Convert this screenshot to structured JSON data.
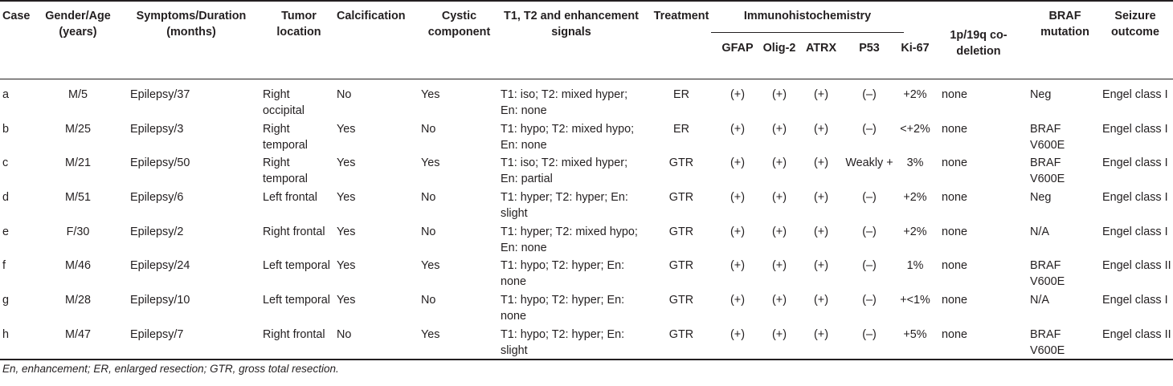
{
  "table": {
    "headers": {
      "case": "Case",
      "gender_age": "Gender/Age (years)",
      "symptoms": "Symptoms/Duration (months)",
      "location": "Tumor location",
      "calcification": "Calcification",
      "cystic": "Cystic component",
      "signals": "T1, T2 and enhancement signals",
      "treatment": "Treatment",
      "immuno": "Immunohistochemistry",
      "gfap": "GFAP",
      "olig2": "Olig-2",
      "atrx": "ATRX",
      "p53": "P53",
      "ki67": "Ki-67",
      "codeletion": "1p/19q co-deletion",
      "braf": "BRAF mutation",
      "seizure": "Seizure outcome"
    },
    "rows": [
      {
        "case": "a",
        "gender_age": "M/5",
        "symptoms": "Epilepsy/37",
        "location": "Right occipital",
        "calcification": "No",
        "cystic": "Yes",
        "signals": "T1: iso; T2: mixed hyper; En: none",
        "treatment": "ER",
        "gfap": "(+)",
        "olig2": "(+)",
        "atrx": "(+)",
        "p53": "(–)",
        "ki67": "+2%",
        "codeletion": "none",
        "braf": "Neg",
        "seizure": "Engel class I"
      },
      {
        "case": "b",
        "gender_age": "M/25",
        "symptoms": "Epilepsy/3",
        "location": "Right temporal",
        "calcification": "Yes",
        "cystic": "No",
        "signals": "T1: hypo; T2: mixed hypo; En: none",
        "treatment": "ER",
        "gfap": "(+)",
        "olig2": "(+)",
        "atrx": "(+)",
        "p53": "(–)",
        "ki67": "<+2%",
        "codeletion": "none",
        "braf": "BRAF V600E",
        "seizure": "Engel class I"
      },
      {
        "case": "c",
        "gender_age": "M/21",
        "symptoms": "Epilepsy/50",
        "location": "Right temporal",
        "calcification": "Yes",
        "cystic": "Yes",
        "signals": "T1: iso; T2: mixed hyper; En: partial",
        "treatment": "GTR",
        "gfap": "(+)",
        "olig2": "(+)",
        "atrx": "(+)",
        "p53": "Weakly +",
        "ki67": "3%",
        "codeletion": "none",
        "braf": "BRAF V600E",
        "seizure": "Engel class I"
      },
      {
        "case": "d",
        "gender_age": "M/51",
        "symptoms": "Epilepsy/6",
        "location": "Left frontal",
        "calcification": "Yes",
        "cystic": "No",
        "signals": "T1: hyper; T2: hyper; En: slight",
        "treatment": "GTR",
        "gfap": "(+)",
        "olig2": "(+)",
        "atrx": "(+)",
        "p53": "(–)",
        "ki67": "+2%",
        "codeletion": "none",
        "braf": "Neg",
        "seizure": "Engel class I"
      },
      {
        "case": "e",
        "gender_age": "F/30",
        "symptoms": "Epilepsy/2",
        "location": "Right frontal",
        "calcification": "Yes",
        "cystic": "No",
        "signals": "T1: hyper; T2: mixed hypo; En: none",
        "treatment": "GTR",
        "gfap": "(+)",
        "olig2": "(+)",
        "atrx": "(+)",
        "p53": "(–)",
        "ki67": "+2%",
        "codeletion": "none",
        "braf": "N/A",
        "seizure": "Engel class I"
      },
      {
        "case": "f",
        "gender_age": "M/46",
        "symptoms": "Epilepsy/24",
        "location": "Left temporal",
        "calcification": "Yes",
        "cystic": "Yes",
        "signals": "T1: hypo; T2: hyper; En: none",
        "treatment": "GTR",
        "gfap": "(+)",
        "olig2": "(+)",
        "atrx": "(+)",
        "p53": "(–)",
        "ki67": "1%",
        "codeletion": "none",
        "braf": "BRAF V600E",
        "seizure": "Engel class II"
      },
      {
        "case": "g",
        "gender_age": "M/28",
        "symptoms": "Epilepsy/10",
        "location": "Left temporal",
        "calcification": "Yes",
        "cystic": "No",
        "signals": "T1: hypo; T2: hyper; En: none",
        "treatment": "GTR",
        "gfap": "(+)",
        "olig2": "(+)",
        "atrx": "(+)",
        "p53": "(–)",
        "ki67": "+<1%",
        "codeletion": "none",
        "braf": "N/A",
        "seizure": "Engel class I"
      },
      {
        "case": "h",
        "gender_age": "M/47",
        "symptoms": "Epilepsy/7",
        "location": "Right frontal",
        "calcification": "No",
        "cystic": "Yes",
        "signals": "T1: hypo; T2: hyper; En: slight",
        "treatment": "GTR",
        "gfap": "(+)",
        "olig2": "(+)",
        "atrx": "(+)",
        "p53": "(–)",
        "ki67": "+5%",
        "codeletion": "none",
        "braf": "BRAF V600E",
        "seizure": "Engel class II"
      }
    ]
  },
  "footnote": "En, enhancement; ER, enlarged resection; GTR, gross total resection."
}
